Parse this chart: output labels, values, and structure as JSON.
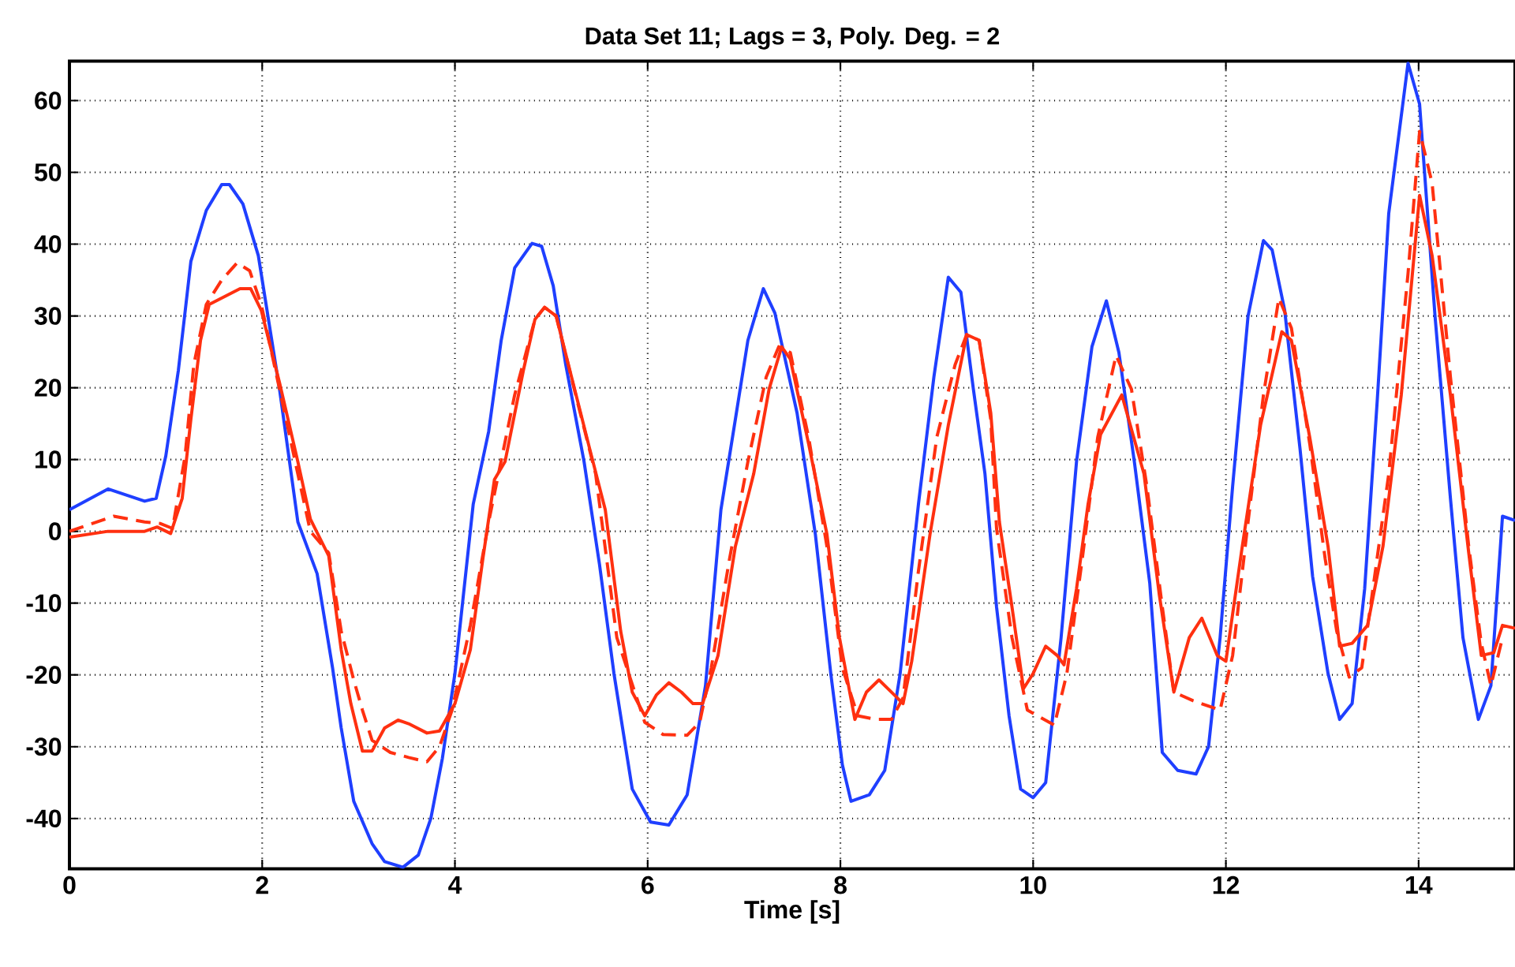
{
  "chart_data": {
    "type": "line",
    "title": "Data Set 11; Lags = 3, Poly. Deg. = 2",
    "xlabel": "Time [s]",
    "xlim": [
      0,
      15
    ],
    "ylim": [
      -47,
      65.5
    ],
    "xticks": [
      0,
      2,
      4,
      6,
      8,
      10,
      12,
      14
    ],
    "yticks": [
      -40,
      -30,
      -20,
      -10,
      0,
      10,
      20,
      30,
      40,
      50,
      60
    ],
    "grid": true,
    "marker": "none",
    "series": [
      {
        "color": "#1f3fff",
        "line_style": "solid",
        "x": [
          0,
          0.4,
          0.78,
          0.9,
          1.0,
          1.13,
          1.26,
          1.42,
          1.58,
          1.66,
          1.8,
          1.96,
          2.18,
          2.37,
          2.57,
          2.73,
          2.82,
          2.95,
          3.14,
          3.27,
          3.46,
          3.62,
          3.75,
          3.87,
          4.0,
          4.19,
          4.35,
          4.48,
          4.62,
          4.8,
          4.9,
          5.02,
          5.15,
          5.34,
          5.5,
          5.65,
          5.84,
          6.03,
          6.22,
          6.41,
          6.6,
          6.76,
          6.91,
          7.04,
          7.2,
          7.32,
          7.55,
          7.74,
          7.9,
          8.02,
          8.11,
          8.3,
          8.46,
          8.62,
          8.81,
          8.97,
          9.12,
          9.25,
          9.38,
          9.5,
          9.62,
          9.75,
          9.87,
          10.0,
          10.13,
          10.29,
          10.45,
          10.61,
          10.76,
          10.89,
          11.05,
          11.21,
          11.34,
          11.5,
          11.69,
          11.82,
          11.94,
          12.07,
          12.23,
          12.39,
          12.48,
          12.61,
          12.77,
          12.9,
          13.06,
          13.18,
          13.31,
          13.44,
          13.57,
          13.69,
          13.89,
          14.01,
          14.17,
          14.33,
          14.46,
          14.62,
          14.75,
          14.87,
          15.0
        ],
        "values": [
          3,
          5.9,
          4.2,
          4.6,
          10.5,
          22.4,
          37.6,
          44.7,
          48.3,
          48.3,
          45.6,
          38.4,
          19.8,
          1.3,
          -5.9,
          -19,
          -27.4,
          -37.6,
          -43.5,
          -46,
          -46.8,
          -45.1,
          -40,
          -31.6,
          -19.8,
          3.8,
          13.9,
          26.6,
          36.7,
          40.1,
          39.7,
          34.2,
          23.2,
          9.7,
          -4.6,
          -19.8,
          -35.9,
          -40.5,
          -40.9,
          -36.7,
          -21.5,
          3,
          15.6,
          26.6,
          33.8,
          30.4,
          16.5,
          -0.4,
          -19.8,
          -32.5,
          -37.6,
          -36.7,
          -33.3,
          -19.8,
          3.8,
          21.5,
          35.4,
          33.3,
          19.8,
          8,
          -10.5,
          -25.7,
          -35.9,
          -37.1,
          -35,
          -14.8,
          9.7,
          25.7,
          32.1,
          24.9,
          9.7,
          -7.2,
          -30.8,
          -33.3,
          -33.8,
          -30,
          -14.8,
          6.3,
          30,
          40.5,
          39.2,
          30.8,
          11.4,
          -6.3,
          -19.8,
          -26.2,
          -24,
          -8,
          18.1,
          44.3,
          65.2,
          59.5,
          30,
          4.6,
          -14.8,
          -26.2,
          -21.5,
          2.1,
          1.5
        ]
      },
      {
        "color": "#ff3010",
        "line_style": "solid",
        "x": [
          0,
          0.4,
          0.78,
          0.91,
          1.05,
          1.17,
          1.26,
          1.36,
          1.45,
          1.61,
          1.77,
          1.88,
          1.99,
          2.18,
          2.37,
          2.5,
          2.69,
          2.82,
          2.92,
          3.04,
          3.14,
          3.27,
          3.41,
          3.52,
          3.71,
          3.84,
          4.0,
          4.16,
          4.29,
          4.41,
          4.52,
          4.71,
          4.83,
          4.93,
          5.05,
          5.21,
          5.4,
          5.56,
          5.72,
          5.84,
          5.97,
          6.09,
          6.22,
          6.35,
          6.47,
          6.57,
          6.73,
          6.91,
          7.1,
          7.26,
          7.39,
          7.48,
          7.67,
          7.86,
          7.99,
          8.15,
          8.27,
          8.4,
          8.56,
          8.65,
          8.74,
          8.93,
          9.12,
          9.31,
          9.44,
          9.56,
          9.65,
          9.78,
          9.9,
          10.0,
          10.13,
          10.25,
          10.32,
          10.45,
          10.57,
          10.7,
          10.92,
          11.15,
          11.31,
          11.46,
          11.62,
          11.75,
          11.91,
          12.0,
          12.17,
          12.36,
          12.58,
          12.68,
          12.87,
          13.06,
          13.18,
          13.31,
          13.47,
          13.63,
          13.82,
          14.01,
          14.14,
          14.33,
          14.52,
          14.65,
          14.78,
          14.87,
          15.0
        ],
        "values": [
          -0.8,
          0,
          0,
          0.6,
          -0.3,
          4.6,
          15.6,
          26.6,
          31.6,
          32.7,
          33.8,
          33.8,
          30.8,
          20.7,
          9.7,
          1.7,
          -3.4,
          -16.5,
          -24,
          -30.6,
          -30.6,
          -27.4,
          -26.3,
          -26.8,
          -28.1,
          -27.8,
          -24,
          -16.5,
          -3.8,
          7.2,
          9.7,
          22.4,
          29.5,
          31.2,
          30,
          21.5,
          11.4,
          3,
          -13.9,
          -22.4,
          -25.7,
          -22.8,
          -21.1,
          -22.4,
          -24,
          -24,
          -17.3,
          -2.1,
          8,
          19.8,
          25.7,
          24,
          12.2,
          -0.4,
          -14.8,
          -26.2,
          -22.4,
          -20.7,
          -22.8,
          -24,
          -18.1,
          -0.4,
          14.8,
          27.4,
          26.6,
          16.5,
          1.3,
          -10.5,
          -21.9,
          -19.8,
          -16,
          -17.3,
          -18.6,
          -8,
          3.8,
          13.5,
          19,
          8,
          -8.9,
          -22.4,
          -14.8,
          -12.1,
          -17.3,
          -18.1,
          -2.1,
          14.8,
          27.8,
          26.6,
          13.1,
          -2.1,
          -16,
          -15.6,
          -13.1,
          -2.1,
          19,
          46.8,
          38.4,
          19,
          -3,
          -17.3,
          -16.9,
          -13.1,
          -13.5
        ]
      },
      {
        "color": "#ff3010",
        "line_style": "dashed",
        "x": [
          0,
          0.46,
          0.78,
          0.94,
          1.07,
          1.2,
          1.29,
          1.42,
          1.58,
          1.74,
          1.87,
          1.99,
          2.18,
          2.37,
          2.5,
          2.69,
          2.82,
          2.95,
          3.04,
          3.14,
          3.33,
          3.52,
          3.71,
          3.84,
          3.97,
          4.16,
          4.35,
          4.62,
          4.83,
          4.93,
          5.05,
          5.27,
          5.46,
          5.68,
          5.97,
          6.16,
          6.41,
          6.54,
          6.66,
          6.85,
          7.04,
          7.23,
          7.36,
          7.48,
          7.67,
          7.86,
          8.02,
          8.18,
          8.37,
          8.53,
          8.65,
          8.81,
          9.0,
          9.19,
          9.31,
          9.44,
          9.56,
          9.62,
          9.78,
          9.94,
          10.22,
          10.35,
          10.51,
          10.67,
          10.86,
          11.02,
          11.18,
          11.34,
          11.46,
          11.66,
          11.94,
          12.07,
          12.23,
          12.39,
          12.55,
          12.68,
          12.87,
          13.03,
          13.15,
          13.28,
          13.41,
          13.5,
          13.69,
          13.89,
          14.01,
          14.14,
          14.33,
          14.52,
          14.65,
          14.75,
          14.87
        ],
        "values": [
          0,
          2.1,
          1.3,
          1.1,
          0.4,
          10.5,
          23.2,
          31.6,
          35,
          37.4,
          36.3,
          31.6,
          19.8,
          8,
          0,
          -3,
          -13.9,
          -20.7,
          -24.9,
          -29.1,
          -30.8,
          -31.5,
          -32.1,
          -30,
          -24.9,
          -13.1,
          1.3,
          19,
          29.5,
          31.2,
          30,
          18.1,
          8,
          -14.8,
          -26.6,
          -28.3,
          -28.4,
          -26.6,
          -19,
          -3.8,
          9.7,
          21.5,
          25.7,
          24.9,
          13.1,
          -2.1,
          -19,
          -25.7,
          -26.2,
          -26.2,
          -23.2,
          -5.5,
          13.1,
          23.2,
          27.4,
          26.6,
          15.6,
          0.4,
          -14.8,
          -24.9,
          -27,
          -19.8,
          -3.8,
          13.1,
          24.5,
          19.8,
          6.3,
          -10.5,
          -22.4,
          -23.6,
          -24.9,
          -17.3,
          1.3,
          19,
          32.5,
          28.3,
          12.2,
          -3.8,
          -13.9,
          -20.3,
          -19,
          -10.5,
          8,
          35.9,
          55.7,
          48.5,
          21.5,
          -2.1,
          -15.6,
          -21.5,
          -14.8
        ]
      }
    ]
  }
}
